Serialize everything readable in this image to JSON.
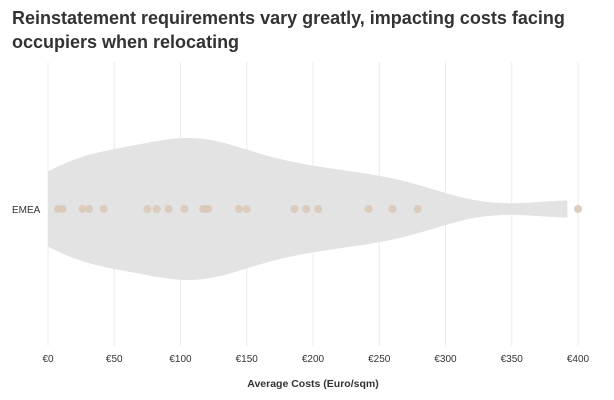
{
  "chart_data": {
    "type": "violin",
    "title": "Reinstatement requirements vary greatly, impacting costs facing occupiers when relocating",
    "xlabel": "Average Costs (Euro/sqm)",
    "ylabel": "",
    "xlim": [
      0,
      400
    ],
    "x_ticks": [
      0,
      50,
      100,
      150,
      200,
      250,
      300,
      350,
      400
    ],
    "x_tick_labels": [
      "€0",
      "€50",
      "€100",
      "€150",
      "€200",
      "€250",
      "€300",
      "€350",
      "€400"
    ],
    "categories": [
      "EMEA"
    ],
    "grid": "vertical",
    "series": [
      {
        "category": "EMEA",
        "values": [
          7.5,
          11,
          26,
          31,
          42,
          75,
          82,
          91,
          103,
          117,
          119,
          121,
          144,
          150,
          186,
          195,
          204,
          242,
          260,
          279,
          400
        ]
      }
    ],
    "colors": {
      "violin": "#e3e3e3",
      "points": "#d9c9b8",
      "grid": "#ececec"
    }
  }
}
